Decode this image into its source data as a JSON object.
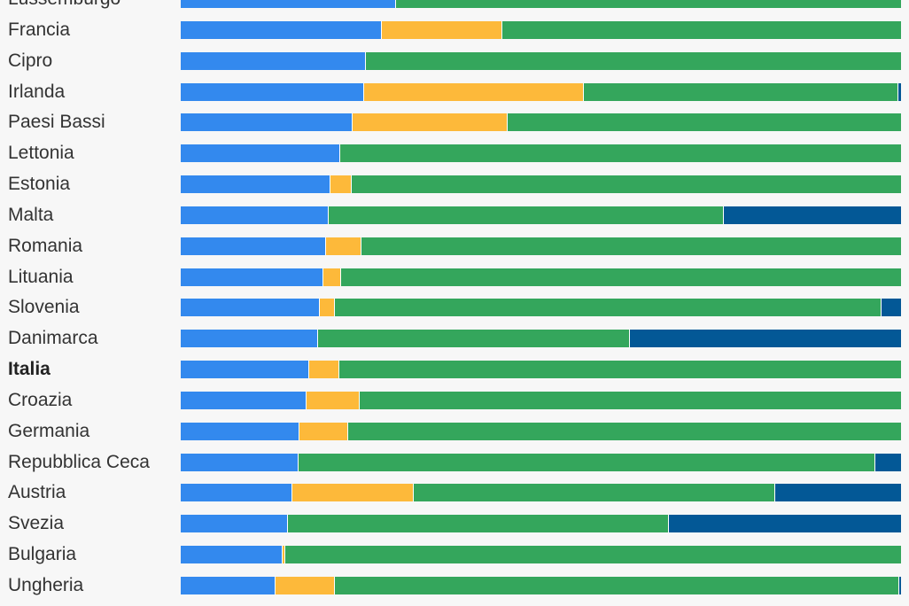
{
  "chart_data": {
    "type": "bar",
    "orientation": "horizontal",
    "stacked": true,
    "normalized": true,
    "title": "",
    "xlabel": "",
    "ylabel": "",
    "xlim": [
      0,
      100
    ],
    "grid": false,
    "legend": "none",
    "highlight_category": "Italia",
    "categories": [
      "Lussemburgo",
      "Francia",
      "Cipro",
      "Irlanda",
      "Paesi Bassi",
      "Lettonia",
      "Estonia",
      "Malta",
      "Romania",
      "Lituania",
      "Slovenia",
      "Danimarca",
      "Italia",
      "Croazia",
      "Germania",
      "Repubblica Ceca",
      "Austria",
      "Svezia",
      "Bulgaria",
      "Ungheria"
    ],
    "series": [
      {
        "color": "#3389ee",
        "values": [
          29.9,
          27.9,
          25.7,
          25.5,
          23.9,
          22.1,
          20.8,
          20.5,
          20.2,
          19.8,
          19.3,
          19.1,
          17.8,
          17.5,
          16.5,
          16.3,
          15.5,
          14.9,
          14.1,
          13.2
        ]
      },
      {
        "color": "#fdb93a",
        "values": [
          0,
          16.7,
          0,
          30.5,
          21.5,
          0,
          3.0,
          0,
          4.9,
          2.5,
          2.1,
          0,
          4.2,
          7.4,
          6.7,
          0,
          16.9,
          0,
          0.4,
          8.2
        ]
      },
      {
        "color": "#34a65c",
        "values": [
          70.1,
          55.4,
          74.3,
          43.6,
          54.6,
          77.9,
          76.2,
          54.9,
          74.9,
          77.7,
          75.9,
          43.3,
          78.0,
          75.1,
          76.8,
          80.1,
          50.1,
          52.9,
          85.5,
          78.3
        ]
      },
      {
        "color": "#035896",
        "values": [
          0,
          0,
          0,
          0.4,
          0,
          0,
          0,
          24.6,
          0,
          0,
          2.7,
          37.6,
          0,
          0,
          0,
          3.6,
          17.5,
          32.2,
          0,
          0.3
        ]
      }
    ]
  }
}
